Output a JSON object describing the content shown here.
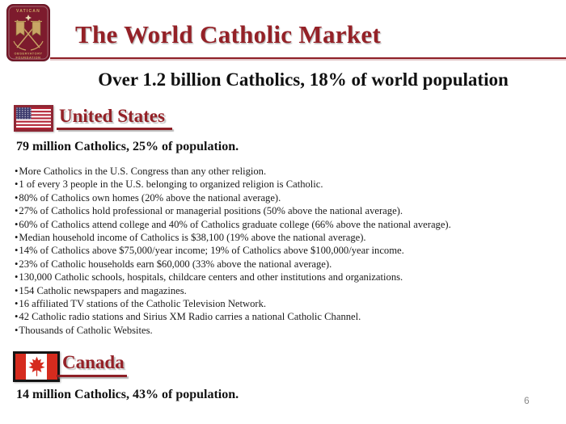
{
  "slide": {
    "title": "The World Catholic Market",
    "subtitle": "Over 1.2 billion Catholics, 18% of world population",
    "page_number": "6"
  },
  "logo": {
    "top": "VATICAN",
    "line1": "OBSERVATORY",
    "line2": "FOUNDATION"
  },
  "us": {
    "heading": "United States",
    "stat": "79 million Catholics, 25% of population.",
    "bullets": [
      "More Catholics in the U.S. Congress than any other religion.",
      "1 of every 3 people in the U.S. belonging to organized religion is Catholic.",
      "80% of Catholics own homes (20% above the national average).",
      "27% of Catholics hold professional or managerial positions (50% above the national average).",
      "60% of Catholics attend college and 40% of Catholics graduate college (66% above the national average).",
      "Median household income of Catholics is $38,100 (19% above the national average).",
      "14% of Catholics above $75,000/year income; 19% of Catholics above $100,000/year income.",
      "23% of Catholic households earn $60,000 (33% above the national average).",
      "130,000 Catholic schools, hospitals, childcare centers and other institutions and organizations.",
      "154 Catholic newspapers and magazines.",
      "16 affiliated TV stations of the Catholic Television Network.",
      "42 Catholic radio stations and Sirius XM Radio carries a national Catholic Channel.",
      "Thousands of Catholic Websites."
    ]
  },
  "canada": {
    "heading": "Canada",
    "stat": "14 million Catholics, 43% of population."
  },
  "colors": {
    "accent_maroon": "#942127",
    "rule_maroon": "#8e1f26",
    "logo_maroon": "#7d1b2d",
    "logo_gold": "#c9a565",
    "us_flag_red": "#b22234",
    "us_flag_blue": "#3c3b6e",
    "us_flag_border": "#8e2734",
    "canada_red": "#d52b1e",
    "canada_border": "#141414",
    "page_number_gray": "#8a8a8a"
  }
}
